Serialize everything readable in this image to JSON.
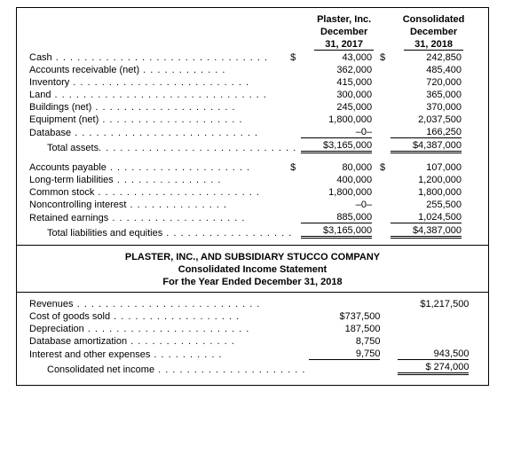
{
  "balance_sheet": {
    "headers": {
      "col1_line1": "Plaster, Inc.",
      "col1_line2": "December",
      "col1_line3": "31, 2017",
      "col2_line1": "Consolidated",
      "col2_line2": "December",
      "col2_line3": "31, 2018"
    },
    "assets": [
      {
        "label": "Cash",
        "v1": "43,000",
        "d1": "$",
        "v2": "242,850",
        "d2": "$"
      },
      {
        "label": "Accounts receivable (net)",
        "v1": "362,000",
        "v2": "485,400"
      },
      {
        "label": "Inventory",
        "v1": "415,000",
        "v2": "720,000"
      },
      {
        "label": "Land",
        "v1": "300,000",
        "v2": "365,000"
      },
      {
        "label": "Buildings (net)",
        "v1": "245,000",
        "v2": "370,000"
      },
      {
        "label": "Equipment (net)",
        "v1": "1,800,000",
        "v2": "2,037,500"
      },
      {
        "label": "Database",
        "v1": "–0–",
        "v2": "166,250",
        "ul": true
      }
    ],
    "total_assets": {
      "label": "Total assets",
      "v1": "$3,165,000",
      "v2": "$4,387,000"
    },
    "liabilities": [
      {
        "label": "Accounts payable",
        "v1": "80,000",
        "d1": "$",
        "v2": "107,000",
        "d2": "$"
      },
      {
        "label": "Long-term liabilities",
        "v1": "400,000",
        "v2": "1,200,000"
      },
      {
        "label": "Common stock",
        "v1": "1,800,000",
        "v2": "1,800,000"
      },
      {
        "label": "Noncontrolling interest",
        "v1": "–0–",
        "v2": "255,500"
      },
      {
        "label": "Retained earnings",
        "v1": "885,000",
        "v2": "1,024,500",
        "ul": true
      }
    ],
    "total_liab": {
      "label": "Total liabilities and equities",
      "v1": "$3,165,000",
      "v2": "$4,387,000"
    }
  },
  "income_statement": {
    "title_line1": "PLASTER, INC., AND SUBSIDIARY STUCCO COMPANY",
    "title_line2": "Consolidated Income Statement",
    "title_line3": "For the Year Ended December 31, 2018",
    "rows": [
      {
        "label": "Revenues",
        "v1": "",
        "v2": "$1,217,500"
      },
      {
        "label": "Cost of goods sold",
        "v1": "$737,500",
        "v2": ""
      },
      {
        "label": "Depreciation",
        "v1": "187,500",
        "v2": ""
      },
      {
        "label": "Database amortization",
        "v1": "8,750",
        "v2": ""
      },
      {
        "label": "Interest and other expenses",
        "v1": "9,750",
        "v2": "943,500",
        "ul1": true,
        "ul2": true
      }
    ],
    "net_income": {
      "label": "Consolidated net income",
      "v2": "$  274,000"
    }
  }
}
